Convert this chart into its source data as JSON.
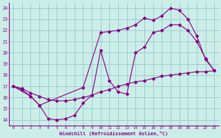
{
  "xlabel": "Windchill (Refroidissement éolien,°C)",
  "bg_color": "#cceee8",
  "line_color": "#880088",
  "grid_color": "#99cccc",
  "xlim": [
    -0.5,
    23.5
  ],
  "ylim": [
    13.5,
    24.5
  ],
  "yticks": [
    14,
    15,
    16,
    17,
    18,
    19,
    20,
    21,
    22,
    23,
    24
  ],
  "xticks": [
    0,
    1,
    2,
    3,
    4,
    5,
    6,
    7,
    8,
    9,
    10,
    11,
    12,
    13,
    14,
    15,
    16,
    17,
    18,
    19,
    20,
    21,
    22,
    23
  ],
  "lines": [
    {
      "x": [
        0,
        1,
        2,
        3,
        4,
        5,
        6,
        7,
        8,
        9,
        10,
        11,
        12,
        13,
        14,
        15,
        16,
        17,
        18,
        19,
        20,
        21,
        22,
        23
      ],
      "y": [
        17.0,
        16.8,
        16.4,
        16.1,
        15.8,
        15.7,
        15.7,
        15.8,
        16.0,
        16.2,
        16.5,
        16.7,
        17.0,
        17.2,
        17.4,
        17.5,
        17.7,
        17.9,
        18.0,
        18.1,
        18.2,
        18.3,
        18.3,
        18.4
      ]
    },
    {
      "x": [
        0,
        1,
        2,
        3,
        4,
        5,
        6,
        7,
        8,
        9,
        10,
        11,
        12,
        13,
        14,
        15,
        16,
        17,
        18,
        19,
        20,
        21,
        22,
        23
      ],
      "y": [
        17.0,
        16.7,
        16.1,
        15.3,
        14.1,
        14.0,
        14.1,
        14.4,
        15.5,
        16.2,
        20.2,
        17.5,
        16.5,
        16.3,
        20.0,
        20.5,
        21.8,
        22.0,
        22.5,
        22.5,
        22.0,
        21.0,
        19.5,
        18.4
      ]
    },
    {
      "x": [
        0,
        2,
        3,
        8,
        10,
        11,
        12,
        13,
        14,
        15,
        16,
        17,
        18,
        19,
        20,
        21,
        22,
        23
      ],
      "y": [
        17.0,
        16.1,
        15.3,
        16.9,
        21.8,
        21.9,
        22.0,
        22.2,
        22.5,
        23.1,
        22.9,
        23.3,
        24.0,
        23.8,
        23.0,
        21.5,
        19.4,
        18.4
      ]
    }
  ]
}
